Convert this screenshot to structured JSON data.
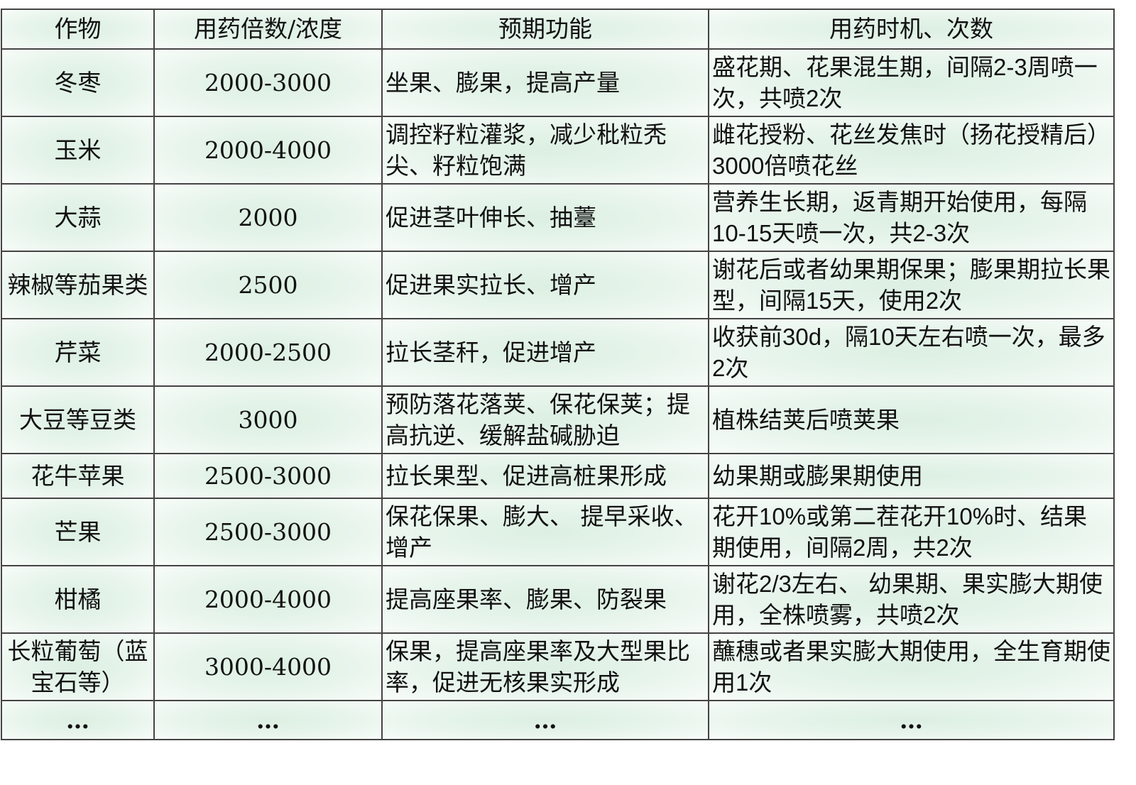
{
  "table": {
    "headers": [
      "作物",
      "用药倍数/浓度",
      "预期功能",
      "用药时机、次数"
    ],
    "rows": [
      {
        "crop": "冬枣",
        "dilution": "2000-3000",
        "function": "坐果、膨果，提高产量",
        "timing": "盛花期、花果混生期，间隔2-3周喷一次，共喷2次"
      },
      {
        "crop": "玉米",
        "dilution": "2000-4000",
        "function": "调控籽粒灌浆，减少秕粒秃尖、籽粒饱满",
        "timing": "雌花授粉、花丝发焦时（扬花授精后）3000倍喷花丝"
      },
      {
        "crop": "大蒜",
        "dilution": "2000",
        "function": "促进茎叶伸长、抽薹",
        "timing": "营养生长期，返青期开始使用，每隔10-15天喷一次，共2-3次"
      },
      {
        "crop": "辣椒等茄果类",
        "dilution": "2500",
        "function": "促进果实拉长、增产",
        "timing": "谢花后或者幼果期保果；膨果期拉长果型，间隔15天，使用2次"
      },
      {
        "crop": "芹菜",
        "dilution": "2000-2500",
        "function": "拉长茎秆，促进增产",
        "timing": "收获前30d，隔10天左右喷一次，最多2次"
      },
      {
        "crop": "大豆等豆类",
        "dilution": "3000",
        "function": "预防落花落荚、保花保荚；提高抗逆、缓解盐碱胁迫",
        "timing": "植株结荚后喷荚果"
      },
      {
        "crop": "花牛苹果",
        "dilution": "2500-3000",
        "function": "拉长果型、促进高桩果形成",
        "timing": "幼果期或膨果期使用"
      },
      {
        "crop": "芒果",
        "dilution": "2500-3000",
        "function": "保花保果、膨大、 提早采收、增产",
        "timing": "花开10%或第二茬花开10%时、结果期使用，间隔2周，共2次"
      },
      {
        "crop": "柑橘",
        "dilution": "2000-4000",
        "function": "提高座果率、膨果、防裂果",
        "timing": "谢花2/3左右、 幼果期、果实膨大期使用，全株喷雾，共喷2次"
      },
      {
        "crop": "长粒葡萄（蓝宝石等）",
        "dilution": "3000-4000",
        "function": "保果，提高座果率及大型果比率，促进无核果实形成",
        "timing": "蘸穗或者果实膨大期使用，全生育期使用1次"
      },
      {
        "crop": "…",
        "dilution": "…",
        "function": "…",
        "timing": "…"
      }
    ]
  }
}
